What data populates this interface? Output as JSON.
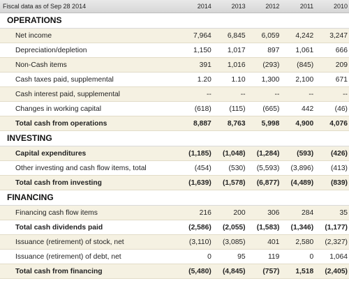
{
  "header": {
    "label": "Fiscal data as of Sep 28 2014",
    "years": [
      "2014",
      "2013",
      "2012",
      "2011",
      "2010"
    ]
  },
  "sections": [
    {
      "title": "OPERATIONS",
      "rows": [
        {
          "label": "Net income",
          "values": [
            "7,964",
            "6,845",
            "6,059",
            "4,242",
            "3,247"
          ],
          "bold": false
        },
        {
          "label": "Depreciation/depletion",
          "values": [
            "1,150",
            "1,017",
            "897",
            "1,061",
            "666"
          ],
          "bold": false
        },
        {
          "label": "Non-Cash items",
          "values": [
            "391",
            "1,016",
            "(293)",
            "(845)",
            "209"
          ],
          "bold": false
        },
        {
          "label": "Cash taxes paid, supplemental",
          "values": [
            "1.20",
            "1.10",
            "1,300",
            "2,100",
            "671"
          ],
          "bold": false
        },
        {
          "label": "Cash interest paid, supplemental",
          "values": [
            "--",
            "--",
            "--",
            "--",
            "--"
          ],
          "bold": false
        },
        {
          "label": "Changes in working capital",
          "values": [
            "(618)",
            "(115)",
            "(665)",
            "442",
            "(46)"
          ],
          "bold": false
        },
        {
          "label": "Total cash from operations",
          "values": [
            "8,887",
            "8,763",
            "5,998",
            "4,900",
            "4,076"
          ],
          "bold": true
        }
      ]
    },
    {
      "title": "INVESTING",
      "rows": [
        {
          "label": "Capital expenditures",
          "values": [
            "(1,185)",
            "(1,048)",
            "(1,284)",
            "(593)",
            "(426)"
          ],
          "bold": true
        },
        {
          "label": "Other investing and cash flow items, total",
          "values": [
            "(454)",
            "(530)",
            "(5,593)",
            "(3,896)",
            "(413)"
          ],
          "bold": false
        },
        {
          "label": "Total cash from investing",
          "values": [
            "(1,639)",
            "(1,578)",
            "(6,877)",
            "(4,489)",
            "(839)"
          ],
          "bold": true
        }
      ]
    },
    {
      "title": "FINANCING",
      "rows": [
        {
          "label": "Financing cash flow items",
          "values": [
            "216",
            "200",
            "306",
            "284",
            "35"
          ],
          "bold": false
        },
        {
          "label": "Total cash dividends paid",
          "values": [
            "(2,586)",
            "(2,055)",
            "(1,583)",
            "(1,346)",
            "(1,177)"
          ],
          "bold": true
        },
        {
          "label": "Issuance (retirement) of stock, net",
          "values": [
            "(3,110)",
            "(3,085)",
            "401",
            "2,580",
            "(2,327)"
          ],
          "bold": false
        },
        {
          "label": "Issuance (retirement) of debt, net",
          "values": [
            "0",
            "95",
            "119",
            "0",
            "1,064"
          ],
          "bold": false
        },
        {
          "label": "Total cash from financing",
          "values": [
            "(5,480)",
            "(4,845)",
            "(757)",
            "1,518",
            "(2,405)"
          ],
          "bold": true
        }
      ]
    }
  ]
}
